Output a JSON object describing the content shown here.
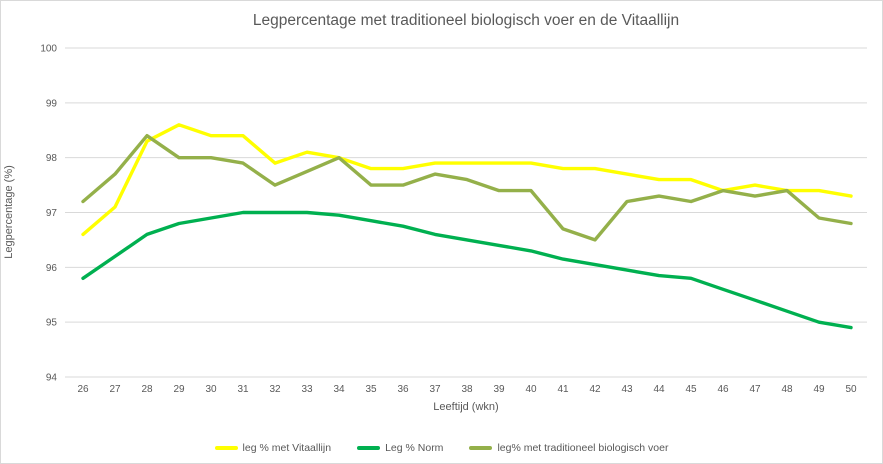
{
  "chart_data": {
    "type": "line",
    "title": "Legpercentage met traditioneel biologisch voer en de Vitaallijn",
    "xlabel": "Leeftijd (wkn)",
    "ylabel": "Legpercentage (%)",
    "x": [
      26,
      27,
      28,
      29,
      30,
      31,
      32,
      33,
      34,
      35,
      36,
      37,
      38,
      39,
      40,
      41,
      42,
      43,
      44,
      45,
      46,
      47,
      48,
      49,
      50
    ],
    "ylim": [
      94,
      100
    ],
    "yticks": [
      94,
      95,
      96,
      97,
      98,
      99,
      100
    ],
    "grid": true,
    "legend_position": "bottom",
    "series": [
      {
        "name": "leg % met Vitaallijn",
        "color": "#ffff00",
        "values": [
          96.6,
          97.1,
          98.3,
          98.6,
          98.4,
          98.4,
          97.9,
          98.1,
          98.0,
          97.8,
          97.8,
          97.9,
          97.9,
          97.9,
          97.9,
          97.8,
          97.8,
          97.7,
          97.6,
          97.6,
          97.4,
          97.5,
          97.4,
          97.4,
          97.3
        ]
      },
      {
        "name": "Leg % Norm",
        "color": "#00b050",
        "values": [
          95.8,
          96.2,
          96.6,
          96.8,
          96.9,
          97.0,
          97.0,
          97.0,
          96.95,
          96.85,
          96.75,
          96.6,
          96.5,
          96.4,
          96.3,
          96.15,
          96.05,
          95.95,
          95.85,
          95.8,
          95.6,
          95.4,
          95.2,
          95.0,
          94.9
        ]
      },
      {
        "name": "leg% met traditioneel biologisch voer",
        "color": "#94b04a",
        "values": [
          97.2,
          97.7,
          98.4,
          98.0,
          98.0,
          97.9,
          97.5,
          97.75,
          98.0,
          97.5,
          97.5,
          97.7,
          97.6,
          97.4,
          97.4,
          96.7,
          96.5,
          97.2,
          97.3,
          97.2,
          97.4,
          97.3,
          97.4,
          96.9,
          96.8
        ]
      }
    ]
  },
  "style": {
    "text_color": "#595959",
    "gridline_color": "#d9d9d9",
    "border_color": "#d9d9d9",
    "background": "#ffffff"
  }
}
